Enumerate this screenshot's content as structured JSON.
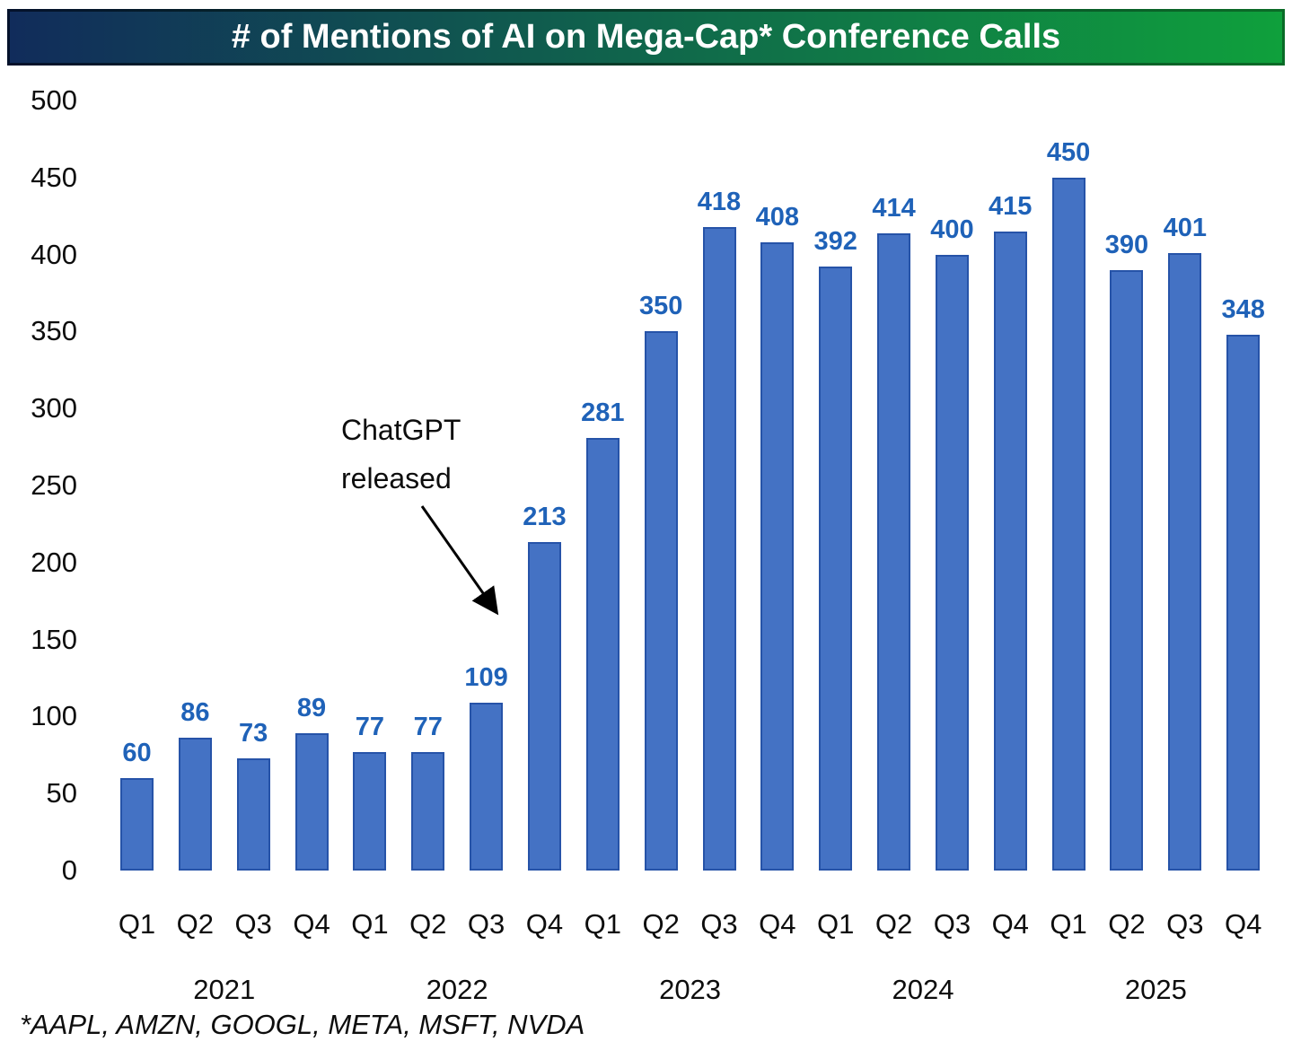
{
  "title": "# of Mentions of AI on Mega-Cap* Conference Calls",
  "footnote": "*AAPL, AMZN, GOOGL, META, MSFT, NVDA",
  "annotation": {
    "line1": "ChatGPT",
    "line2": "released",
    "target_quarter": "Q4 2022"
  },
  "colors": {
    "banner_gradient_left": "#112C5B",
    "banner_gradient_right": "#0FA03C",
    "bar_fill": "#4472C4",
    "bar_border": "#2653A8",
    "value_label": "#1F62B8",
    "axis_label": "#0d0d0d",
    "background": "#FFFFFF"
  },
  "chart_data": {
    "type": "bar",
    "title": "# of Mentions of AI on Mega-Cap* Conference Calls",
    "xlabel": "",
    "ylabel": "",
    "categories": [
      "Q1",
      "Q2",
      "Q3",
      "Q4",
      "Q1",
      "Q2",
      "Q3",
      "Q4",
      "Q1",
      "Q2",
      "Q3",
      "Q4",
      "Q1",
      "Q2",
      "Q3",
      "Q4",
      "Q1",
      "Q2",
      "Q3",
      "Q4"
    ],
    "year_groups": [
      "2021",
      "2022",
      "2023",
      "2024",
      "2025"
    ],
    "values": [
      60,
      86,
      73,
      89,
      77,
      77,
      109,
      213,
      281,
      350,
      418,
      408,
      392,
      414,
      400,
      415,
      450,
      390,
      401,
      348
    ],
    "ylim": [
      0,
      500
    ],
    "yticks": [
      0,
      50,
      100,
      150,
      200,
      250,
      300,
      350,
      400,
      450,
      500
    ],
    "grid": false,
    "legend_position": "none",
    "annotations": [
      {
        "text": "ChatGPT released",
        "arrow_points_to": "Q4 2022"
      }
    ]
  }
}
